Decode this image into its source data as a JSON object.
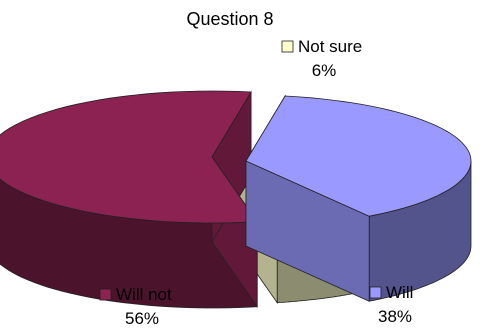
{
  "chart_data": {
    "type": "pie",
    "style": "3d-exploded",
    "title": "Question 8",
    "slices": [
      {
        "label": "Will not",
        "value": 56,
        "display": "56%",
        "color": "#8B2252",
        "legend_position": "bottom-left"
      },
      {
        "label": "Not sure",
        "value": 6,
        "display": "6%",
        "color": "#FFFFCC",
        "legend_position": "top"
      },
      {
        "label": "Will",
        "value": 38,
        "display": "38%",
        "color": "#9999FF",
        "legend_position": "bottom-right"
      }
    ]
  }
}
